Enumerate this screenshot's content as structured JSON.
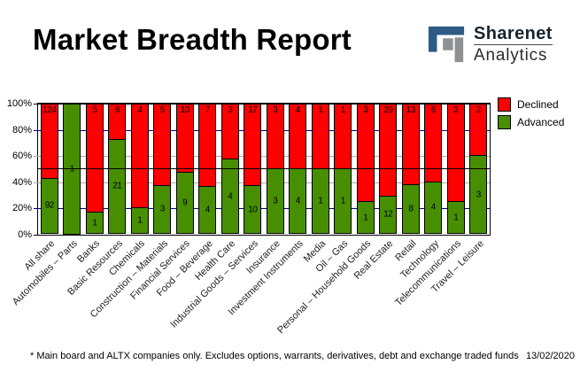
{
  "header": {
    "title": "Market Breadth Report",
    "logo": {
      "line1": "Sharenet",
      "line2": "Analytics"
    }
  },
  "colors": {
    "declined": "#FF0000",
    "advanced": "#478F00",
    "grid_navy": "#000080",
    "grid_gray": "#A9A9A9",
    "reference_line": "#000000",
    "logo_blue": "#2D5B86",
    "logo_gray": "#8E9092"
  },
  "chart_data": {
    "type": "bar",
    "stacked_percent": true,
    "title": "Market Breadth Report",
    "ylim": [
      0,
      100
    ],
    "yticks": [
      {
        "label": "100%",
        "pct": 100
      },
      {
        "label": "80%",
        "pct": 80
      },
      {
        "label": "60%",
        "pct": 60
      },
      {
        "label": "40%",
        "pct": 40
      },
      {
        "label": "20%",
        "pct": 20
      },
      {
        "label": "0%",
        "pct": 0
      }
    ],
    "gridlines": [
      {
        "pct": 100,
        "color": "#000000"
      },
      {
        "pct": 80,
        "color": "#000080"
      },
      {
        "pct": 60,
        "color": "#A9A9A9"
      },
      {
        "pct": 40,
        "color": "#A9A9A9"
      },
      {
        "pct": 20,
        "color": "#000080"
      },
      {
        "pct": 0,
        "color": "#000000"
      }
    ],
    "reference_line_pct": 50,
    "legend_position": "top-right",
    "legend": [
      {
        "label": "Declined",
        "color": "#FF0000"
      },
      {
        "label": "Advanced",
        "color": "#478F00"
      }
    ],
    "categories": [
      "All share",
      "Automobiles – Parts",
      "Banks",
      "Basic Resources",
      "Chemicals",
      "Construction – Materials",
      "Financial Services",
      "Food – Beverage",
      "Health Care",
      "Industrial Goods – Services",
      "Insurance",
      "Investment Instruments",
      "Media",
      "Oil – Gas",
      "Personal – Household Goods",
      "Real Estate",
      "Retail",
      "Technology",
      "Telecommunications",
      "Travel – Leisure"
    ],
    "series": [
      {
        "name": "Declined",
        "values": [
          124,
          0,
          5,
          8,
          4,
          5,
          10,
          7,
          3,
          17,
          3,
          4,
          1,
          1,
          3,
          29,
          13,
          6,
          3,
          2
        ]
      },
      {
        "name": "Advanced",
        "values": [
          92,
          1,
          1,
          21,
          1,
          3,
          9,
          4,
          4,
          10,
          3,
          4,
          1,
          1,
          1,
          12,
          8,
          4,
          1,
          3
        ]
      }
    ]
  },
  "footer": {
    "note": "* Main board and ALTX companies only. Excludes options, warrants, derivatives, debt and exchange traded funds",
    "date": "13/02/2020"
  }
}
